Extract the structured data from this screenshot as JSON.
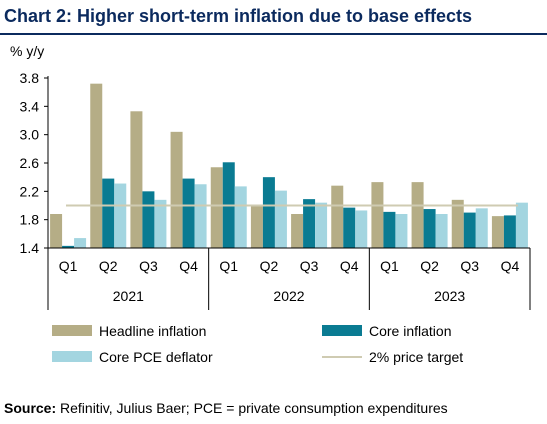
{
  "chart_data": {
    "type": "bar",
    "title": "Chart 2: Higher short-term inflation due to base effects",
    "ylabel": "% y/y",
    "ylim": [
      1.4,
      3.8
    ],
    "yticks": [
      1.4,
      1.8,
      2.2,
      2.6,
      3.0,
      3.4,
      3.8
    ],
    "ytick_labels": [
      "1.4",
      "1.8",
      "2.2",
      "2.6",
      "3.0",
      "3.4",
      "3.8"
    ],
    "categories": [
      "Q1",
      "Q2",
      "Q3",
      "Q4",
      "Q1",
      "Q2",
      "Q3",
      "Q4",
      "Q1",
      "Q2",
      "Q3",
      "Q4"
    ],
    "year_groups": [
      {
        "label": "2021",
        "count": 4
      },
      {
        "label": "2022",
        "count": 4
      },
      {
        "label": "2023",
        "count": 4
      }
    ],
    "series": [
      {
        "name": "Headline inflation",
        "color": "#b5ad86",
        "values": [
          1.88,
          3.72,
          3.33,
          3.04,
          2.54,
          1.99,
          1.88,
          2.28,
          2.33,
          2.33,
          2.08,
          1.85
        ]
      },
      {
        "name": "Core inflation",
        "color": "#0a7b92",
        "values": [
          1.43,
          2.38,
          2.2,
          2.38,
          2.61,
          2.4,
          2.09,
          1.97,
          1.91,
          1.95,
          1.9,
          1.86
        ]
      },
      {
        "name": "Core PCE deflator",
        "color": "#a3d5e0",
        "values": [
          1.54,
          2.31,
          2.08,
          2.3,
          2.27,
          2.21,
          2.04,
          1.93,
          1.88,
          1.88,
          1.96,
          2.04
        ]
      }
    ],
    "reference_line": {
      "name": "2% price target",
      "value": 2.0,
      "color": "#cfcbb2"
    },
    "legend_position": "bottom",
    "grid": false
  },
  "source": {
    "label": "Source:",
    "text": " Refinitiv, Julius Baer; PCE = private consumption expenditures"
  }
}
